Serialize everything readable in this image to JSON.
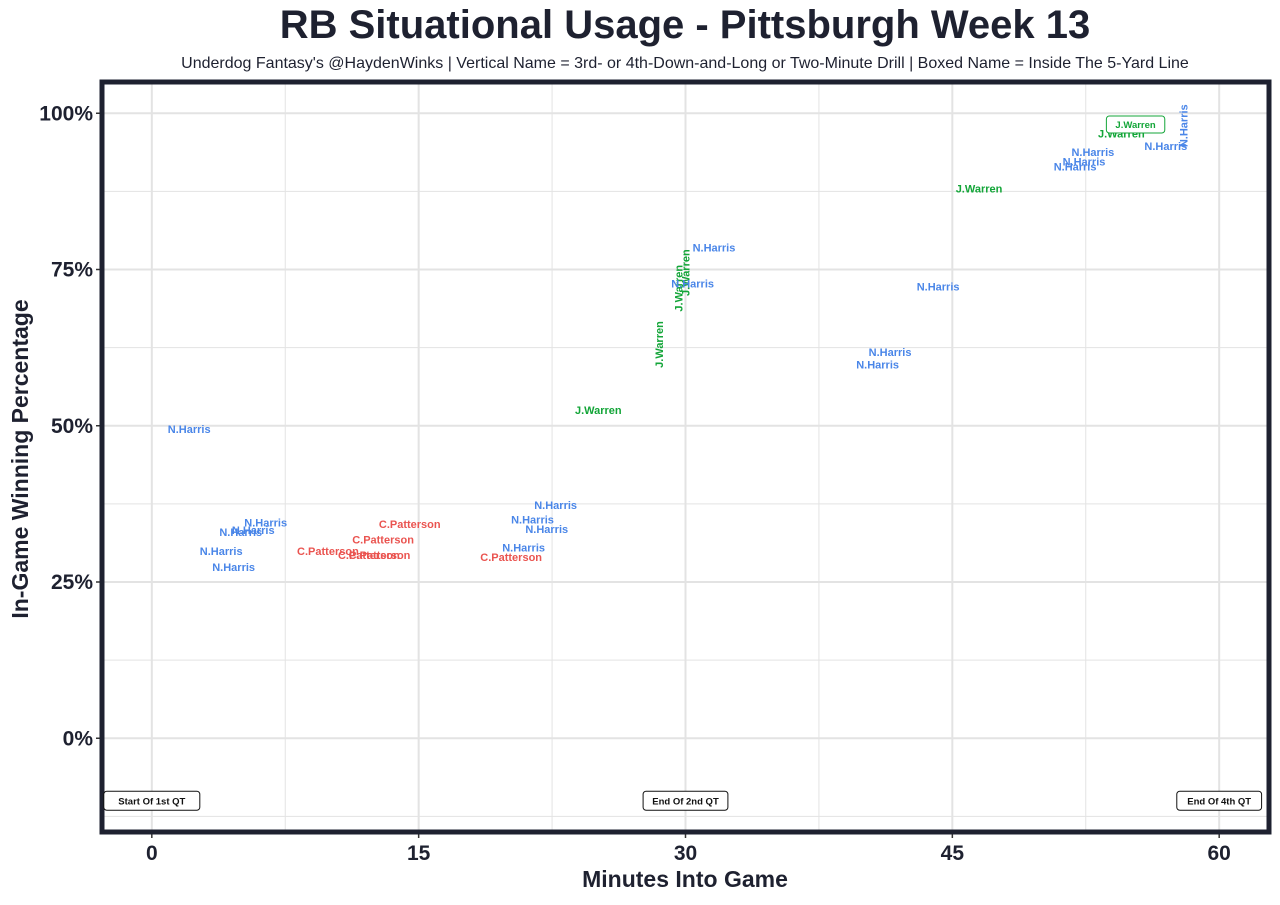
{
  "chart_data": {
    "type": "scatter",
    "title": "RB Situational Usage - Pittsburgh Week 13",
    "subtitle": "Underdog Fantasy's @HaydenWinks | Vertical Name = 3rd- or 4th-Down-and-Long or Two-Minute Drill | Boxed Name = Inside The 5-Yard Line",
    "xlabel": "Minutes Into Game",
    "ylabel": "In-Game Winning Percentage",
    "xlim": [
      -2.8,
      62.8
    ],
    "ylim": [
      -15,
      105
    ],
    "x_ticks": [
      0,
      15,
      30,
      45,
      60
    ],
    "x_tick_labels": [
      "0",
      "15",
      "30",
      "45",
      "60"
    ],
    "y_ticks": [
      0,
      25,
      50,
      75,
      100
    ],
    "y_tick_labels": [
      "0%",
      "25%",
      "50%",
      "75%",
      "100%"
    ],
    "grid": true,
    "colors": {
      "N.Harris": "#4a86e8",
      "J.Warren": "#13a538",
      "C.Patterson": "#ea5450",
      "frame": "#1e2130",
      "grid": "#e3e3e3"
    },
    "annotations": [
      {
        "text": "Start Of 1st QT",
        "x": 0,
        "y": -10
      },
      {
        "text": "End Of 2nd QT",
        "x": 30,
        "y": -10
      },
      {
        "text": "End Of 4th QT",
        "x": 60,
        "y": -10
      }
    ],
    "points": [
      {
        "player": "N.Harris",
        "x": 2.1,
        "y": 49.5,
        "style": "normal"
      },
      {
        "player": "N.Harris",
        "x": 6.4,
        "y": 34.5,
        "style": "normal"
      },
      {
        "player": "N.Harris",
        "x": 5.7,
        "y": 33.3,
        "style": "normal"
      },
      {
        "player": "N.Harris",
        "x": 5.0,
        "y": 33.0,
        "style": "normal"
      },
      {
        "player": "N.Harris",
        "x": 3.9,
        "y": 30.0,
        "style": "normal"
      },
      {
        "player": "N.Harris",
        "x": 4.6,
        "y": 27.4,
        "style": "normal"
      },
      {
        "player": "C.Patterson",
        "x": 9.9,
        "y": 30.0,
        "style": "normal"
      },
      {
        "player": "C.Patterson",
        "x": 12.2,
        "y": 29.3,
        "style": "normal"
      },
      {
        "player": "C.Patterson",
        "x": 12.8,
        "y": 29.3,
        "style": "normal"
      },
      {
        "player": "C.Patterson",
        "x": 13.0,
        "y": 31.8,
        "style": "normal"
      },
      {
        "player": "C.Patterson",
        "x": 14.5,
        "y": 34.3,
        "style": "normal"
      },
      {
        "player": "N.Harris",
        "x": 22.7,
        "y": 37.3,
        "style": "normal"
      },
      {
        "player": "N.Harris",
        "x": 21.4,
        "y": 35.0,
        "style": "normal"
      },
      {
        "player": "N.Harris",
        "x": 22.2,
        "y": 33.5,
        "style": "normal"
      },
      {
        "player": "N.Harris",
        "x": 20.9,
        "y": 30.5,
        "style": "normal"
      },
      {
        "player": "C.Patterson",
        "x": 20.2,
        "y": 29.0,
        "style": "normal"
      },
      {
        "player": "J.Warren",
        "x": 25.1,
        "y": 52.5,
        "style": "normal"
      },
      {
        "player": "J.Warren",
        "x": 28.5,
        "y": 63.0,
        "style": "vertical"
      },
      {
        "player": "J.Warren",
        "x": 29.6,
        "y": 72.0,
        "style": "vertical"
      },
      {
        "player": "J.Warren",
        "x": 30.0,
        "y": 74.5,
        "style": "vertical"
      },
      {
        "player": "N.Harris",
        "x": 31.6,
        "y": 78.5,
        "style": "normal"
      },
      {
        "player": "N.Harris",
        "x": 30.4,
        "y": 72.8,
        "style": "normal"
      },
      {
        "player": "N.Harris",
        "x": 44.2,
        "y": 72.3,
        "style": "normal"
      },
      {
        "player": "N.Harris",
        "x": 41.5,
        "y": 61.8,
        "style": "normal"
      },
      {
        "player": "N.Harris",
        "x": 40.8,
        "y": 59.8,
        "style": "normal"
      },
      {
        "player": "J.Warren",
        "x": 46.5,
        "y": 88.0,
        "style": "normal"
      },
      {
        "player": "N.Harris",
        "x": 51.9,
        "y": 91.5,
        "style": "normal"
      },
      {
        "player": "N.Harris",
        "x": 52.4,
        "y": 92.3,
        "style": "normal"
      },
      {
        "player": "N.Harris",
        "x": 52.9,
        "y": 93.8,
        "style": "normal"
      },
      {
        "player": "N.Harris",
        "x": 57.0,
        "y": 94.8,
        "style": "normal"
      },
      {
        "player": "N.Harris",
        "x": 58.0,
        "y": 98.0,
        "style": "vertical"
      },
      {
        "player": "J.Warren",
        "x": 54.5,
        "y": 96.8,
        "style": "normal"
      },
      {
        "player": "J.Warren",
        "x": 55.3,
        "y": 98.2,
        "style": "boxed"
      }
    ]
  }
}
